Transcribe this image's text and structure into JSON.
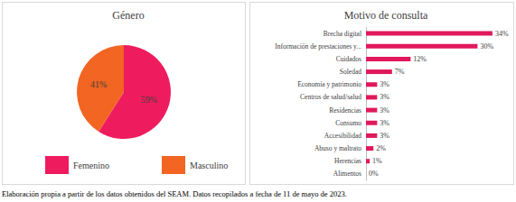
{
  "chart_data": [
    {
      "type": "pie",
      "title": "Género",
      "categories": [
        "Femenino",
        "Masculino"
      ],
      "values": [
        59,
        41
      ],
      "value_labels": [
        "59%",
        "41%"
      ],
      "colors": [
        "#ee1c5f",
        "#f26522"
      ],
      "data_labels": true,
      "legend": "bottom"
    },
    {
      "type": "bar",
      "title": "Motivo de consulta",
      "orientation": "horizontal",
      "categories": [
        "Brecha digital",
        "Información de prestaciones y...",
        "Cuidados",
        "Soledad",
        "Economía y patrimonio",
        "Centros de salud/salud",
        "Residencias",
        "Consumo",
        "Accesibilidad",
        "Abuso y maltrato",
        "Herencias",
        "Alimentos"
      ],
      "values": [
        34,
        30,
        12,
        7,
        3,
        3,
        3,
        3,
        3,
        2,
        1,
        0
      ],
      "value_labels": [
        "34%",
        "30%",
        "12%",
        "7%",
        "3%",
        "3%",
        "3%",
        "3%",
        "3%",
        "2%",
        "1%",
        "0%"
      ],
      "color": "#e0185c",
      "data_labels": true,
      "tick_labels": "y"
    }
  ],
  "caption": "Elaboración propia a partir de los datos obtenidos del SEAM. Datos recopilados a fecha de 11 de mayo de 2023."
}
